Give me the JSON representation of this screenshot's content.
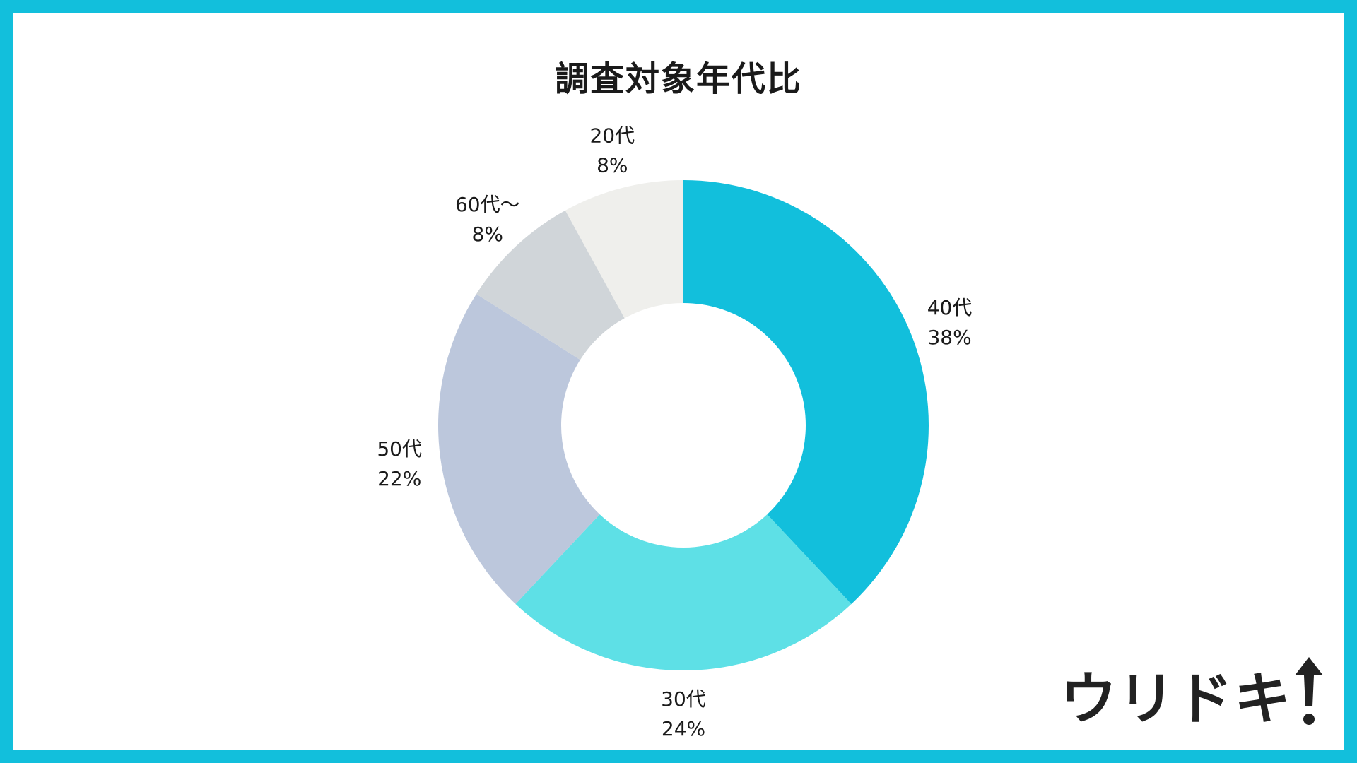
{
  "chart_data": {
    "type": "pie",
    "title": "調査対象年代比",
    "donut": true,
    "start_angle_deg": 0,
    "direction": "clockwise",
    "slices": [
      {
        "label": "40代",
        "value": 38,
        "value_label": "38%",
        "color": "#12bfdc"
      },
      {
        "label": "30代",
        "value": 24,
        "value_label": "24%",
        "color": "#5ee0e6"
      },
      {
        "label": "50代",
        "value": 22,
        "value_label": "22%",
        "color": "#bcc7dc"
      },
      {
        "label": "60代～",
        "value": 8,
        "value_label": "8%",
        "color": "#d0d5d9"
      },
      {
        "label": "20代",
        "value": 8,
        "value_label": "8%",
        "color": "#efefec"
      }
    ]
  },
  "logo": {
    "text": "ウリドキ"
  },
  "colors": {
    "frame": "#12bfdc",
    "text": "#1a1a1a"
  }
}
